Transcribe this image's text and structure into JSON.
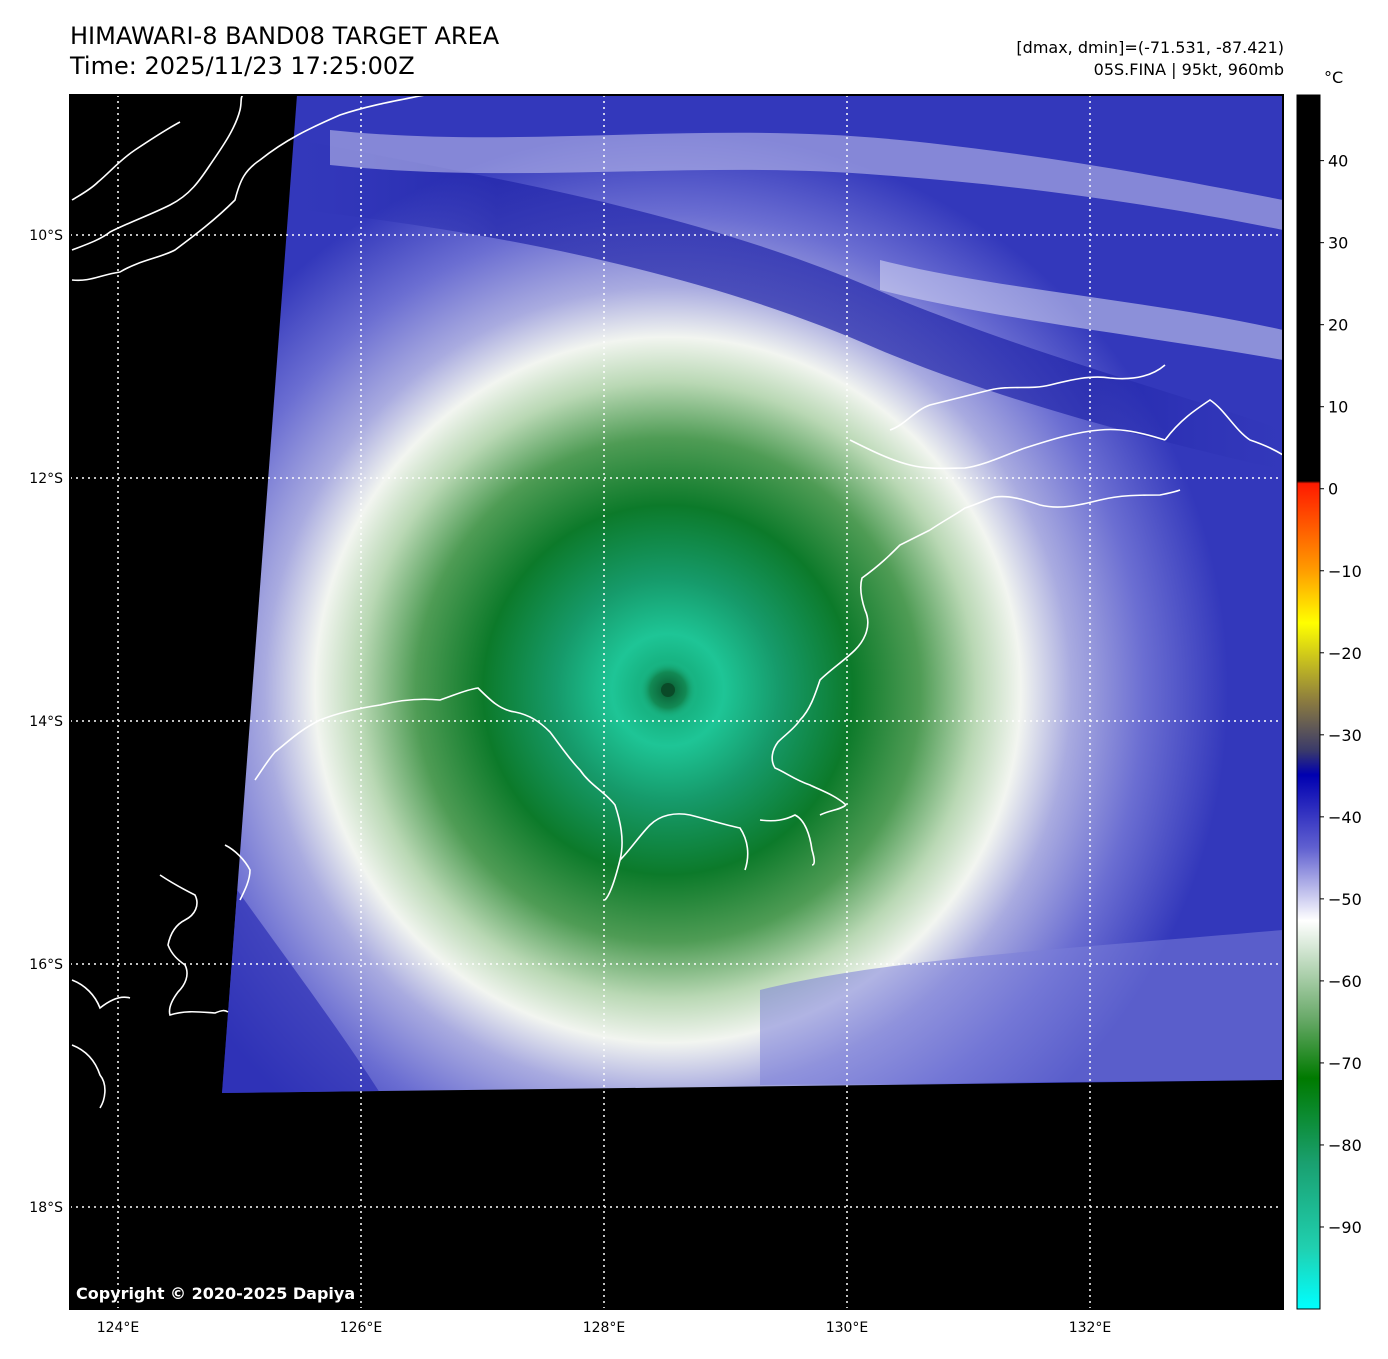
{
  "title": {
    "line1": "HIMAWARI-8 BAND08 TARGET AREA",
    "line2": "Time: 2025/11/23 17:25:00Z"
  },
  "stats": {
    "line1": "[dmax, dmin]=(-71.531, -87.421)",
    "line2": "05S.FINA | 95kt, 960mb"
  },
  "map": {
    "lat_labels": [
      "10°S",
      "12°S",
      "14°S",
      "16°S",
      "18°S"
    ],
    "lon_labels": [
      "124°E",
      "126°E",
      "128°E",
      "130°E",
      "132°E"
    ],
    "lat_values": [
      -10,
      -12,
      -14,
      -16,
      -18
    ],
    "lon_values": [
      124,
      126,
      128,
      130,
      132
    ],
    "storm_center": {
      "lat": -13.8,
      "lon": 128.55
    }
  },
  "colorbar": {
    "unit": "°C",
    "ticks": [
      "40",
      "30",
      "20",
      "10",
      "0",
      "−10",
      "−20",
      "−30",
      "−40",
      "−50",
      "−60",
      "−70",
      "−80",
      "−90"
    ],
    "tick_values": [
      40,
      30,
      20,
      10,
      0,
      -10,
      -20,
      -30,
      -40,
      -50,
      -60,
      -70,
      -80,
      -90
    ],
    "range": [
      -100,
      48
    ]
  },
  "copyright": "Copyright © 2020-2025 Dapiya"
}
